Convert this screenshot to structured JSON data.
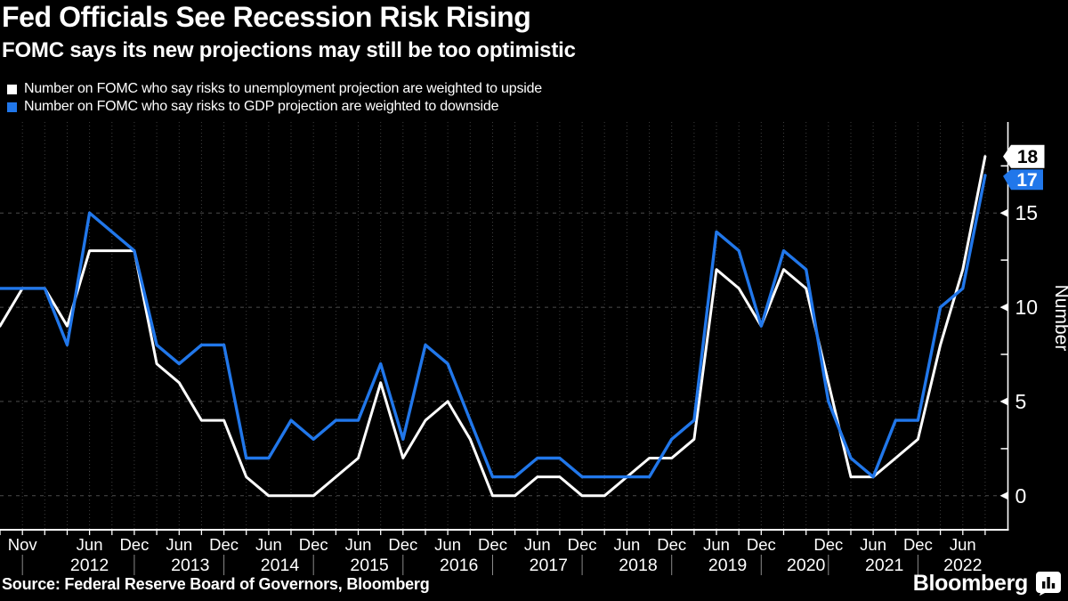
{
  "chart_data": {
    "type": "line",
    "title": "Fed Officials See Recession Risk Rising",
    "subtitle": "FOMC says its new projections may still be too optimistic",
    "ylabel": "Number",
    "yticks": [
      0,
      5,
      10,
      15
    ],
    "minor_yticks": [
      2.5,
      7.5,
      12.5,
      17.5
    ],
    "ylim": [
      -1.8,
      19.8
    ],
    "grid": true,
    "legend_position": "top-left",
    "background": "#000000",
    "x": [
      "Jun 2011",
      "Nov 2011",
      "Jan 2012",
      "Apr 2012",
      "Jun 2012",
      "Sep 2012",
      "Dec 2012",
      "Mar 2013",
      "Jun 2013",
      "Sep 2013",
      "Dec 2013",
      "Mar 2014",
      "Jun 2014",
      "Sep 2014",
      "Dec 2014",
      "Mar 2015",
      "Jun 2015",
      "Sep 2015",
      "Dec 2015",
      "Mar 2016",
      "Jun 2016",
      "Sep 2016",
      "Dec 2016",
      "Mar 2017",
      "Jun 2017",
      "Sep 2017",
      "Dec 2017",
      "Mar 2018",
      "Jun 2018",
      "Sep 2018",
      "Dec 2018",
      "Mar 2019",
      "Jun 2019",
      "Sep 2019",
      "Dec 2019",
      "Jun 2020",
      "Sep 2020",
      "Dec 2020",
      "Mar 2021",
      "Jun 2021",
      "Sep 2021",
      "Dec 2021",
      "Mar 2022",
      "Jun 2022",
      "Sep 2022"
    ],
    "series": [
      {
        "name": "Number on FOMC who say risks to unemployment projection are weighted to upside",
        "color": "#ffffff",
        "end_label": "18",
        "badge_text_color": "#000000",
        "values": [
          9,
          11,
          11,
          9,
          13,
          13,
          13,
          7,
          6,
          4,
          4,
          1,
          0,
          0,
          0,
          1,
          2,
          6,
          2,
          4,
          5,
          3,
          0,
          0,
          1,
          1,
          0,
          0,
          1,
          2,
          2,
          3,
          12,
          11,
          9,
          12,
          11,
          6,
          1,
          1,
          2,
          3,
          8,
          12,
          18
        ]
      },
      {
        "name": "Number on FOMC who say risks to GDP projection are weighted to downside",
        "color": "#2177ea",
        "end_label": "17",
        "badge_text_color": "#ffffff",
        "values": [
          11,
          11,
          11,
          8,
          15,
          14,
          13,
          8,
          7,
          8,
          8,
          2,
          2,
          4,
          3,
          4,
          4,
          7,
          3,
          8,
          7,
          4,
          1,
          1,
          2,
          2,
          1,
          1,
          1,
          1,
          3,
          4,
          14,
          13,
          9,
          13,
          12,
          5,
          2,
          1,
          4,
          4,
          10,
          11,
          17
        ]
      }
    ],
    "x_tick_labels": [
      {
        "i": 1,
        "label": "Nov"
      },
      {
        "i": 4,
        "label": "Jun"
      },
      {
        "i": 6,
        "label": "Dec"
      },
      {
        "i": 8,
        "label": "Jun"
      },
      {
        "i": 10,
        "label": "Dec"
      },
      {
        "i": 12,
        "label": "Jun"
      },
      {
        "i": 14,
        "label": "Dec"
      },
      {
        "i": 16,
        "label": "Jun"
      },
      {
        "i": 18,
        "label": "Dec"
      },
      {
        "i": 20,
        "label": "Jun"
      },
      {
        "i": 22,
        "label": "Dec"
      },
      {
        "i": 24,
        "label": "Jun"
      },
      {
        "i": 26,
        "label": "Dec"
      },
      {
        "i": 28,
        "label": "Jun"
      },
      {
        "i": 30,
        "label": "Dec"
      },
      {
        "i": 32,
        "label": "Jun"
      },
      {
        "i": 34,
        "label": "Dec"
      },
      {
        "i": 37,
        "label": "Dec"
      },
      {
        "i": 39,
        "label": "Jun"
      },
      {
        "i": 41,
        "label": "Dec"
      },
      {
        "i": 43,
        "label": "Jun"
      }
    ],
    "year_labels": [
      {
        "label": "2012",
        "from": 2,
        "to": 6
      },
      {
        "label": "2013",
        "from": 7,
        "to": 10
      },
      {
        "label": "2014",
        "from": 11,
        "to": 14
      },
      {
        "label": "2015",
        "from": 15,
        "to": 18
      },
      {
        "label": "2016",
        "from": 19,
        "to": 22
      },
      {
        "label": "2017",
        "from": 23,
        "to": 26
      },
      {
        "label": "2018",
        "from": 27,
        "to": 30
      },
      {
        "label": "2019",
        "from": 31,
        "to": 34
      },
      {
        "label": "2020",
        "from": 35,
        "to": 37
      },
      {
        "label": "2021",
        "from": 38,
        "to": 41
      },
      {
        "label": "2022",
        "from": 42,
        "to": 44
      }
    ],
    "source": "Source: Federal Reserve Board of Governors, Bloomberg"
  },
  "branding": {
    "logo": "Bloomberg"
  },
  "style_colors": {
    "grid_vertical": "#3e3e3e",
    "grid_horizontal": "#4c4c4c",
    "axis": "#ffffff",
    "year_separator": "#8a8a8a",
    "text": "#ffffff"
  }
}
